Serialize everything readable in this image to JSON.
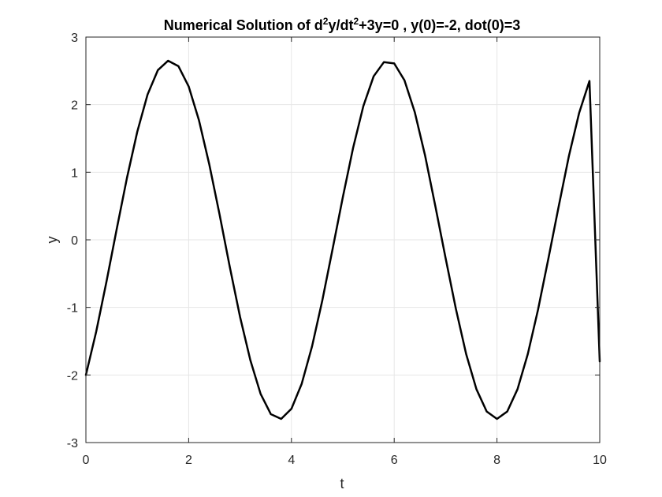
{
  "chart_data": {
    "type": "line",
    "title": {
      "prefix": "Numerical Solution of d",
      "sup1": "2",
      "mid": "y/dt",
      "sup2": "2",
      "suffix": "+3y=0 , y(0)=-2, dot(0)=3"
    },
    "xlabel": "t",
    "ylabel": "y",
    "xlim": [
      0,
      10
    ],
    "ylim": [
      -3,
      3
    ],
    "xticks": [
      0,
      2,
      4,
      6,
      8,
      10
    ],
    "yticks": [
      -3,
      -2,
      -1,
      0,
      1,
      2,
      3
    ],
    "grid": true,
    "series": [
      {
        "color": "#000000",
        "x": [
          0,
          0.2,
          0.4,
          0.6,
          0.8,
          1.0,
          1.2,
          1.4,
          1.6,
          1.8,
          2.0,
          2.2,
          2.4,
          2.6,
          2.8,
          3.0,
          3.2,
          3.4,
          3.6,
          3.8,
          4.0,
          4.2,
          4.4,
          4.6,
          4.8,
          5.0,
          5.2,
          5.4,
          5.6,
          5.8,
          6.0,
          6.2,
          6.4,
          6.6,
          6.8,
          7.0,
          7.2,
          7.4,
          7.6,
          7.8,
          8.0,
          8.2,
          8.4,
          8.6,
          8.8,
          9.0,
          9.2,
          9.4,
          9.6,
          9.8,
          10.0
        ],
        "y": [
          -2.0,
          -1.36,
          -0.62,
          0.16,
          0.92,
          1.6,
          2.15,
          2.51,
          2.65,
          2.57,
          2.27,
          1.77,
          1.12,
          0.38,
          -0.4,
          -1.14,
          -1.78,
          -2.28,
          -2.58,
          -2.65,
          -2.5,
          -2.13,
          -1.58,
          -0.9,
          -0.14,
          0.63,
          1.36,
          1.98,
          2.42,
          2.63,
          2.61,
          2.36,
          1.89,
          1.25,
          0.5,
          -0.27,
          -1.02,
          -1.69,
          -2.21,
          -2.54,
          -2.65,
          -2.54,
          -2.21,
          -1.69,
          -1.03,
          -0.28,
          0.49,
          1.24,
          1.88,
          2.35,
          -1.8
        ]
      }
    ]
  }
}
